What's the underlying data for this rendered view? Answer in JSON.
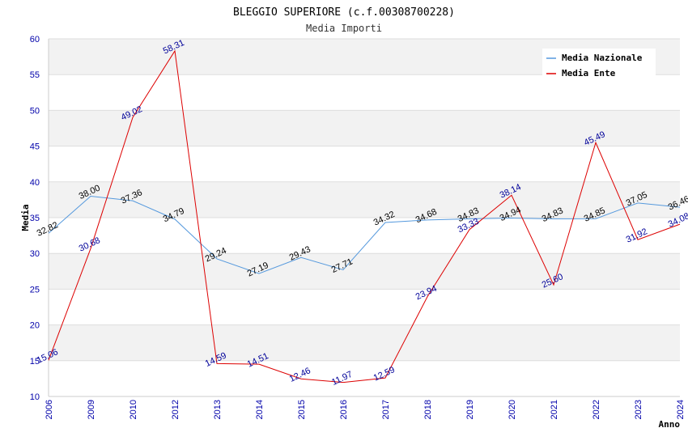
{
  "chart_data": {
    "type": "line",
    "title": "BLEGGIO SUPERIORE (c.f.00308700228)",
    "subtitle": "Media Importi",
    "xlabel": "Anno",
    "ylabel": "Media",
    "ylim": [
      10,
      60
    ],
    "yticks": [
      10,
      15,
      20,
      25,
      30,
      35,
      40,
      45,
      50,
      55,
      60
    ],
    "categories": [
      "2006",
      "2009",
      "2010",
      "2012",
      "2013",
      "2014",
      "2015",
      "2016",
      "2017",
      "2018",
      "2019",
      "2020",
      "2021",
      "2022",
      "2023",
      "2024"
    ],
    "series": [
      {
        "name": "Media Nazionale",
        "color": "#5599dd",
        "values": [
          32.82,
          38.0,
          37.36,
          34.79,
          29.24,
          27.19,
          29.43,
          27.71,
          34.32,
          34.68,
          34.83,
          34.94,
          34.83,
          34.85,
          37.05,
          36.46
        ],
        "labels": [
          "32.82",
          "38.00",
          "37.36",
          "34.79",
          "29.24",
          "27.19",
          "29.43",
          "27.71",
          "34.32",
          "34.68",
          "34.83",
          "34.94",
          "34.83",
          "34.85",
          "37.05",
          "36.46"
        ]
      },
      {
        "name": "Media Ente",
        "color": "#dd0000",
        "values": [
          15.06,
          30.68,
          49.02,
          58.31,
          14.59,
          14.51,
          12.46,
          11.97,
          12.59,
          23.94,
          33.33,
          38.14,
          25.6,
          45.49,
          31.92,
          34.08
        ],
        "labels": [
          "15.06",
          "30.68",
          "49.02",
          "58.31",
          "14.59",
          "14.51",
          "12.46",
          "11.97",
          "12.59",
          "23.94",
          "33.33",
          "38.14",
          "25.60",
          "45.49",
          "31.92",
          "34.08"
        ]
      }
    ],
    "legend_position": "top-right",
    "grid": true
  }
}
